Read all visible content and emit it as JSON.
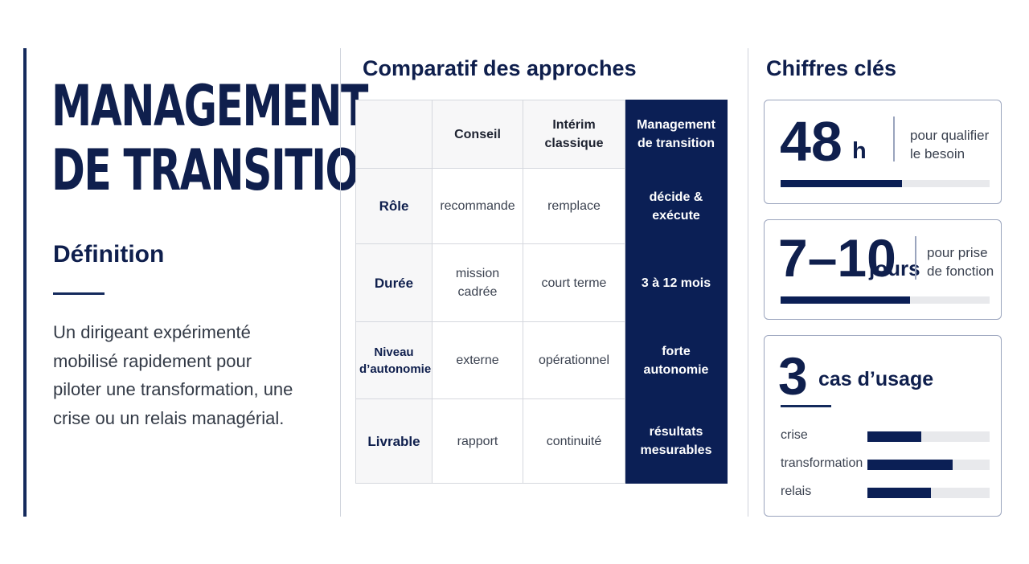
{
  "left": {
    "title_line1": "MANAGEMENT",
    "title_line2": "DE TRANSITION",
    "definition_title": "Définition",
    "definition_text": "Un dirigeant expérimenté mobilisé rapidement pour piloter une transformation, une crise ou un relais managérial."
  },
  "comparison": {
    "title": "Comparatif des approches",
    "columns": [
      "",
      "Conseil",
      "Intérim classique",
      "Management de transition"
    ],
    "rows": [
      {
        "label": "Rôle",
        "cells": [
          "recommande",
          "remplace",
          "décide & exécute"
        ]
      },
      {
        "label": "Durée",
        "cells": [
          "mission cadrée",
          "court terme",
          "3 à 12 mois"
        ]
      },
      {
        "label": "Niveau d’autonomie",
        "cells": [
          "externe",
          "opérationnel",
          "forte autonomie"
        ]
      },
      {
        "label": "Livrable",
        "cells": [
          "rapport",
          "continuité",
          "résultats mesurables"
        ]
      }
    ]
  },
  "figures": {
    "title": "Chiffres clés",
    "stat1": {
      "value": "48",
      "unit": "h",
      "label": "pour qualifier le besoin",
      "progress": 0.58
    },
    "stat2": {
      "value": "7–10",
      "unit": "jours",
      "label": "pour prise de fonction",
      "progress": 0.62
    },
    "stat3": {
      "value": "3",
      "unit": "cas d’usage",
      "items": [
        {
          "label": "crise",
          "level": 0.44
        },
        {
          "label": "transformation",
          "level": 0.7
        },
        {
          "label": "relais",
          "level": 0.52
        }
      ]
    }
  },
  "colors": {
    "navy": "#0b1f55",
    "track": "#e8e9ec",
    "border": "#9aa4bd"
  }
}
